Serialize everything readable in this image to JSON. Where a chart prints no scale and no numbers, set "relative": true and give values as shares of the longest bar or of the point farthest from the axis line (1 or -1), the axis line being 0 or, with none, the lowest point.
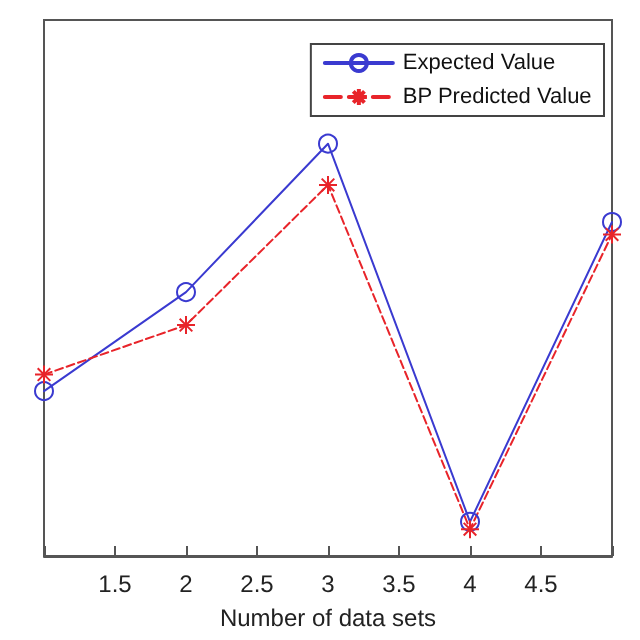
{
  "chart_data": {
    "type": "line",
    "xlabel": "Number of data sets",
    "relative": true,
    "x": [
      1,
      2,
      3,
      4,
      5
    ],
    "xlim": [
      1,
      5
    ],
    "xticks": [
      {
        "value": 1,
        "label": null
      },
      1.5,
      2,
      2.5,
      3,
      3.5,
      4,
      4.5,
      {
        "value": 5,
        "label": null
      }
    ],
    "series": [
      {
        "name": "Expected Value",
        "color": "#3a3ad0",
        "values": [
          0.4,
          0.64,
          1,
          0.083,
          0.81
        ],
        "marker": "circle",
        "line_style": "solid"
      },
      {
        "name": "BP Predicted Value",
        "color": "#e8242a",
        "values": [
          0.44,
          0.56,
          0.9,
          0.065,
          0.78
        ],
        "marker": "cross",
        "line_style": "dashed"
      }
    ],
    "grid": false,
    "legend": "top right"
  }
}
